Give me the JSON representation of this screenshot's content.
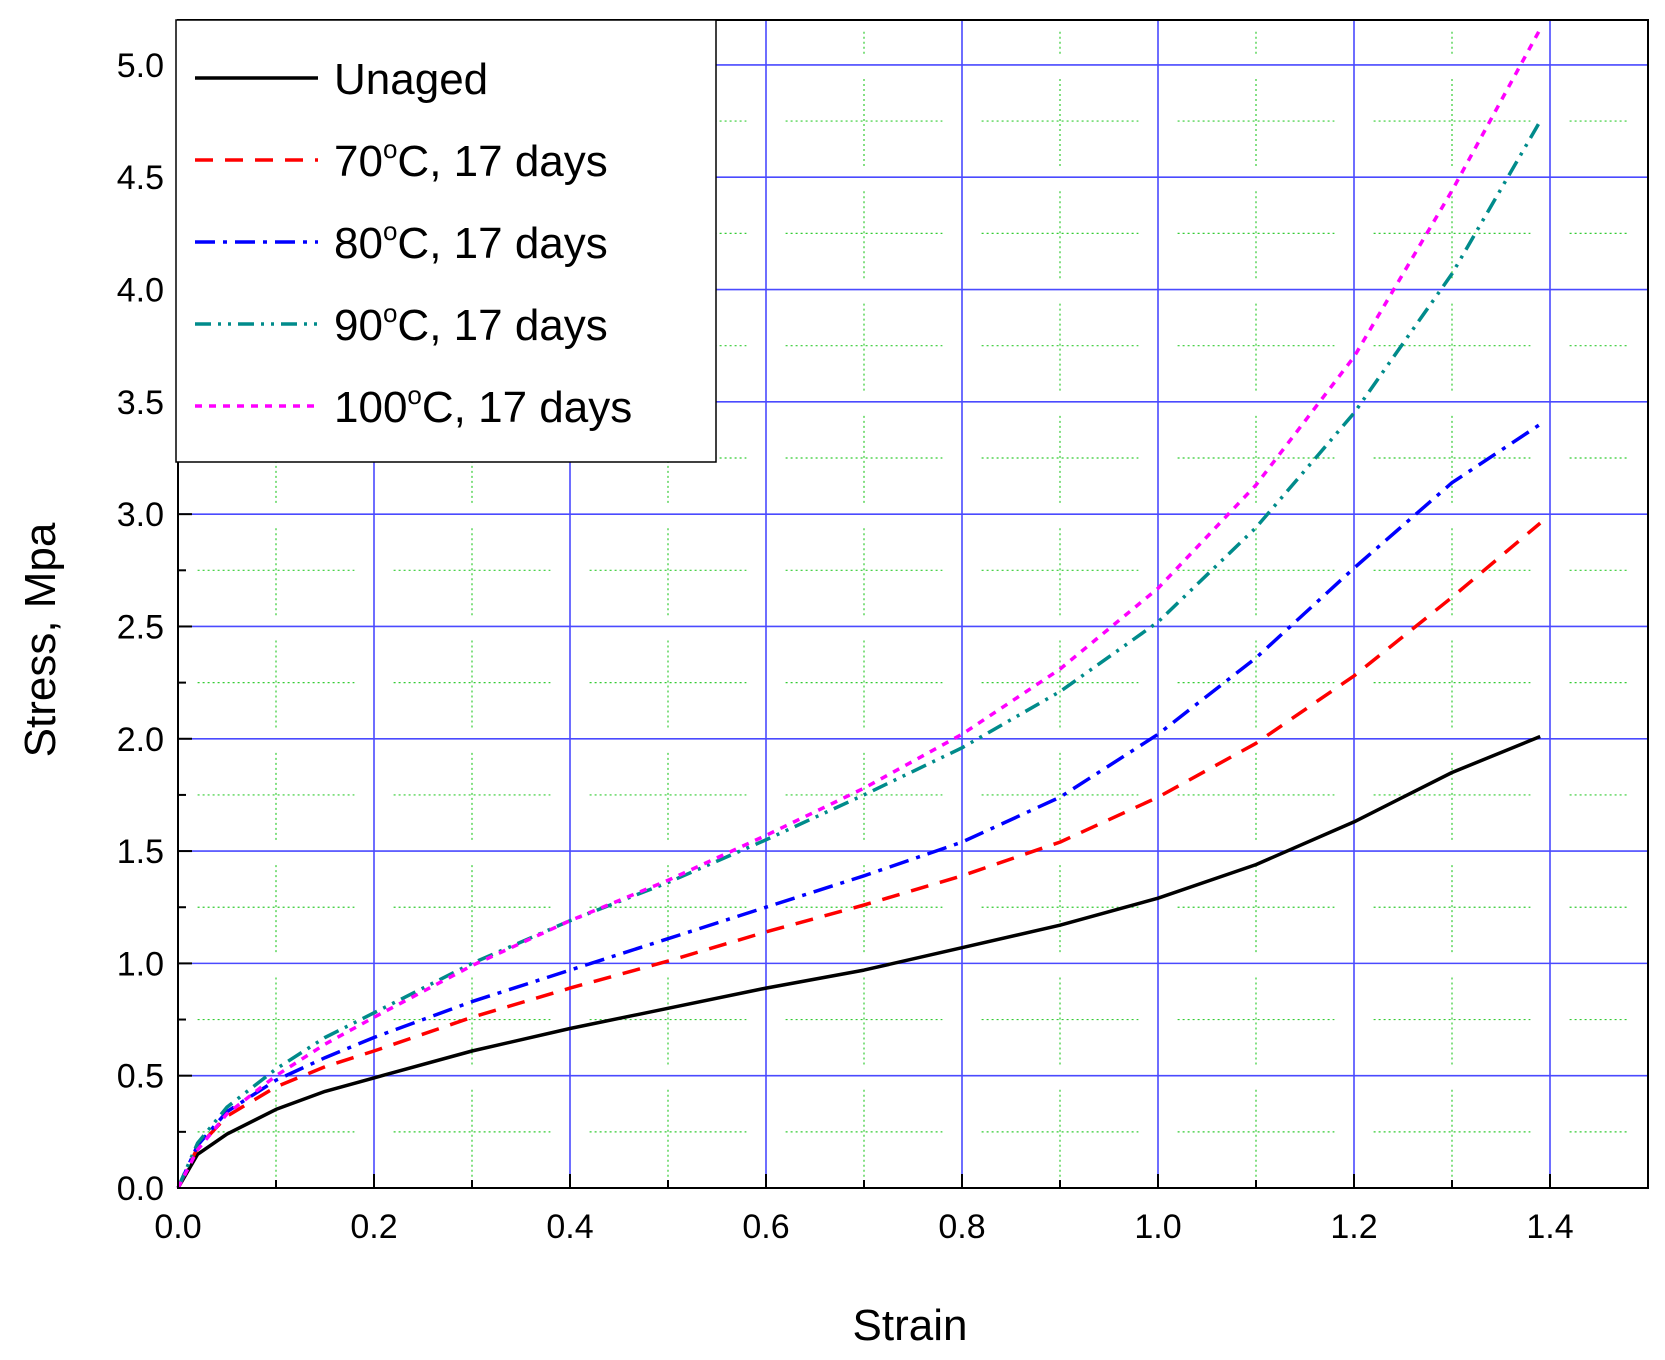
{
  "chart_data": {
    "type": "line",
    "title": "",
    "xlabel": "Strain",
    "ylabel": "Stress, Mpa",
    "xlim": [
      0.0,
      1.5
    ],
    "ylim": [
      0.0,
      5.2
    ],
    "x_ticks": [
      "0.0",
      "0.2",
      "0.4",
      "0.6",
      "0.8",
      "1.0",
      "1.2",
      "1.4"
    ],
    "y_ticks": [
      "0.0",
      "0.5",
      "1.0",
      "1.5",
      "2.0",
      "2.5",
      "3.0",
      "3.5",
      "4.0",
      "4.5",
      "5.0"
    ],
    "grid": true,
    "legend_position": "top-left",
    "series": [
      {
        "name": "Unaged",
        "temp": "",
        "suffix": "",
        "color": "#000000",
        "dash": "solid",
        "x": [
          0,
          0.02,
          0.05,
          0.1,
          0.15,
          0.2,
          0.3,
          0.4,
          0.5,
          0.6,
          0.7,
          0.8,
          0.9,
          1.0,
          1.1,
          1.2,
          1.3,
          1.39
        ],
        "y": [
          0,
          0.15,
          0.24,
          0.35,
          0.43,
          0.49,
          0.61,
          0.71,
          0.8,
          0.89,
          0.97,
          1.07,
          1.17,
          1.29,
          1.44,
          1.63,
          1.85,
          2.01
        ]
      },
      {
        "name": "70°C, 17 days",
        "temp": "70",
        "suffix": "C, 17 days",
        "color": "#ff0000",
        "dash": "dash",
        "x": [
          0,
          0.02,
          0.05,
          0.1,
          0.15,
          0.2,
          0.3,
          0.4,
          0.5,
          0.6,
          0.7,
          0.8,
          0.9,
          1.0,
          1.1,
          1.2,
          1.3,
          1.39
        ],
        "y": [
          0,
          0.18,
          0.32,
          0.45,
          0.54,
          0.61,
          0.76,
          0.89,
          1.01,
          1.14,
          1.26,
          1.39,
          1.54,
          1.74,
          1.98,
          2.28,
          2.63,
          2.96
        ]
      },
      {
        "name": "80°C, 17 days",
        "temp": "80",
        "suffix": "C, 17 days",
        "color": "#0000ff",
        "dash": "dashdot",
        "x": [
          0,
          0.02,
          0.05,
          0.1,
          0.15,
          0.2,
          0.3,
          0.4,
          0.5,
          0.6,
          0.7,
          0.8,
          0.9,
          1.0,
          1.1,
          1.2,
          1.3,
          1.39
        ],
        "y": [
          0,
          0.19,
          0.34,
          0.48,
          0.58,
          0.67,
          0.83,
          0.97,
          1.11,
          1.25,
          1.39,
          1.54,
          1.74,
          2.02,
          2.36,
          2.76,
          3.14,
          3.4
        ]
      },
      {
        "name": "90°C, 17 days",
        "temp": "90",
        "suffix": "C, 17 days",
        "color": "#008b8b",
        "dash": "dashdotdot",
        "x": [
          0,
          0.02,
          0.05,
          0.1,
          0.15,
          0.2,
          0.3,
          0.4,
          0.5,
          0.6,
          0.7,
          0.8,
          0.9,
          1.0,
          1.1,
          1.2,
          1.3,
          1.39
        ],
        "y": [
          0,
          0.2,
          0.36,
          0.53,
          0.67,
          0.78,
          1.0,
          1.19,
          1.36,
          1.55,
          1.75,
          1.96,
          2.21,
          2.52,
          2.94,
          3.45,
          4.07,
          4.75
        ]
      },
      {
        "name": "100°C, 17 days",
        "temp": "100",
        "suffix": "C, 17 days",
        "color": "#ff00ff",
        "dash": "dot",
        "x": [
          0,
          0.02,
          0.05,
          0.1,
          0.15,
          0.2,
          0.3,
          0.4,
          0.5,
          0.6,
          0.7,
          0.8,
          0.9,
          1.0,
          1.1,
          1.2,
          1.3,
          1.39
        ],
        "y": [
          0,
          0.17,
          0.33,
          0.5,
          0.64,
          0.76,
          0.99,
          1.19,
          1.37,
          1.57,
          1.78,
          2.02,
          2.31,
          2.67,
          3.13,
          3.7,
          4.44,
          5.16
        ]
      }
    ]
  }
}
